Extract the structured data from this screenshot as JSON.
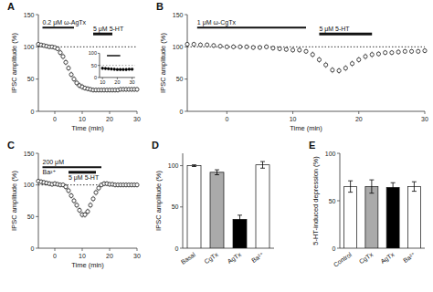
{
  "chart_data": [
    {
      "type": "scatter",
      "title": "A",
      "xlabel": "Time (min)",
      "ylabel": "IPSC amplitude (%)",
      "x": [
        -6,
        -5,
        -4,
        -3,
        -2,
        -1,
        0,
        1,
        2,
        3,
        4,
        5,
        6,
        7,
        8,
        9,
        10,
        11,
        12,
        13,
        14,
        15,
        16,
        17,
        18,
        19,
        20,
        21,
        22,
        23,
        24,
        25,
        26,
        27,
        28,
        29,
        30
      ],
      "values": [
        104,
        103,
        102,
        101,
        100,
        100,
        99,
        97,
        91,
        85,
        76,
        67,
        57,
        50,
        44,
        40,
        38,
        36,
        35,
        34,
        33,
        33,
        33,
        33,
        33,
        33,
        33,
        33,
        33,
        33,
        34,
        34,
        34,
        34,
        34,
        34,
        34
      ],
      "errors": [
        3,
        3,
        3,
        3,
        3,
        3,
        3,
        4,
        5,
        5,
        5,
        5,
        5,
        5,
        5,
        5,
        5,
        4,
        4,
        4,
        4,
        4,
        4,
        4,
        4,
        4,
        4,
        4,
        4,
        4,
        4,
        4,
        4,
        4,
        4,
        4,
        4
      ],
      "color": "black",
      "marker": "open-circle",
      "xlim": [
        -6,
        30
      ],
      "ylim": [
        0,
        150
      ],
      "xticks": [
        0,
        10,
        20,
        30
      ],
      "yticks": [
        0,
        50,
        100,
        150
      ],
      "reference_line": 100,
      "annotations": [
        {
          "text": "0.2 μM ω-AgTx",
          "x": [
            -4.5,
            7
          ],
          "y": 130
        },
        {
          "text": "5 μM 5-HT",
          "x": [
            14,
            21
          ],
          "y": 120
        }
      ],
      "inset": {
        "type": "scatter",
        "x": [
          10,
          12,
          14,
          16,
          18,
          20,
          22,
          24,
          26,
          28,
          30
        ],
        "values": [
          38,
          37,
          36,
          35,
          34,
          33,
          33,
          33,
          33,
          34,
          34
        ],
        "errors": [
          3.5,
          3.5,
          3.5,
          3.5,
          3.5,
          3.5,
          3.5,
          3.5,
          3.5,
          3.5,
          3.5
        ],
        "color": "black",
        "marker": "circle",
        "xlim": [
          8,
          32
        ],
        "ylim": [
          0,
          100
        ],
        "xticks": [
          10,
          20,
          30
        ],
        "yticks": [
          0,
          50,
          100
        ],
        "reference_line": 50,
        "annotations": [
          {
            "x": [
              13,
              22
            ],
            "y": 90
          }
        ]
      }
    },
    {
      "type": "scatter",
      "title": "B",
      "xlabel": "Time (min)",
      "ylabel": "IPSC amplitude (%)",
      "x": [
        -6,
        -5,
        -4,
        -3,
        -2,
        -1,
        0,
        1,
        2,
        3,
        4,
        5,
        6,
        7,
        8,
        9,
        10,
        11,
        12,
        13,
        14,
        15,
        16,
        17,
        18,
        19,
        20,
        21,
        22,
        23,
        24,
        25,
        26,
        27,
        28,
        29,
        30
      ],
      "values": [
        104,
        104,
        103,
        103,
        102,
        101,
        100,
        100,
        100,
        100,
        99,
        99,
        100,
        98,
        97,
        96,
        95,
        95,
        93,
        88,
        80,
        72,
        64,
        63,
        67,
        74,
        80,
        85,
        88,
        89,
        91,
        91,
        92,
        93,
        93,
        93,
        94
      ],
      "errors": [
        4,
        4,
        4,
        4,
        4,
        4,
        4,
        4,
        4,
        4,
        4,
        4,
        4,
        4,
        4,
        4,
        4,
        4,
        4,
        5,
        5,
        5,
        5,
        5,
        5,
        5,
        5,
        5,
        5,
        4,
        4,
        4,
        4,
        4,
        4,
        4,
        4
      ],
      "color": "black",
      "marker": "open-circle",
      "xlim": [
        -6,
        30
      ],
      "ylim": [
        0,
        150
      ],
      "xticks": [
        0,
        10,
        20,
        30
      ],
      "yticks": [
        0,
        50,
        100,
        150
      ],
      "reference_line": 100,
      "annotations": [
        {
          "text": "1 μM ω-CgTx",
          "x": [
            -4.5,
            12
          ],
          "y": 130
        },
        {
          "text": "5 μM 5-HT",
          "x": [
            14,
            22
          ],
          "y": 120
        }
      ]
    },
    {
      "type": "scatter",
      "title": "C",
      "xlabel": "Time (min)",
      "ylabel": "IPSC amplitude (%)",
      "x": [
        -6,
        -5,
        -4,
        -3,
        -2,
        -1,
        0,
        1,
        2,
        3,
        4,
        5,
        6,
        7,
        8,
        9,
        10,
        11,
        12,
        13,
        14,
        15,
        16,
        17,
        18,
        19,
        20,
        21,
        22,
        23,
        24,
        25,
        26,
        27,
        28,
        29,
        30
      ],
      "values": [
        106,
        105,
        104,
        103,
        102,
        101,
        102,
        101,
        100,
        100,
        97,
        91,
        83,
        75,
        68,
        60,
        53,
        53,
        58,
        68,
        78,
        88,
        95,
        100,
        102,
        102,
        101,
        101,
        100,
        100,
        100,
        100,
        100,
        100,
        100,
        100,
        100
      ],
      "errors": [
        4,
        4,
        4,
        4,
        4,
        4,
        4,
        4,
        4,
        4,
        5,
        5,
        5,
        5,
        5,
        5,
        5,
        5,
        5,
        5,
        5,
        5,
        5,
        4,
        4,
        4,
        4,
        4,
        4,
        4,
        4,
        4,
        4,
        4,
        4,
        4,
        4
      ],
      "color": "black",
      "marker": "open-circle",
      "xlim": [
        -6,
        30
      ],
      "ylim": [
        0,
        150
      ],
      "xticks": [
        0,
        10,
        20,
        30
      ],
      "yticks": [
        0,
        50,
        100,
        150
      ],
      "reference_line": 100,
      "annotations": [
        {
          "text": "200 μM",
          "text_below": "Ba²⁺",
          "x": [
            -4.5,
            17
          ],
          "y": 128
        },
        {
          "text": "5 μM 5-HT",
          "x": [
            5,
            15
          ],
          "y": 120
        }
      ]
    },
    {
      "type": "bar",
      "title": "D",
      "ylabel": "IPSC amplitude (%)",
      "categories": [
        "Basal",
        "CgTx",
        "AgTx",
        "Ba²⁺"
      ],
      "values": [
        100,
        92,
        35,
        101
      ],
      "errors": [
        1,
        3,
        5,
        4
      ],
      "colors": [
        "white",
        "#aaaaaa",
        "black",
        "white"
      ],
      "ylim": [
        0,
        115
      ],
      "yticks": [
        0,
        50,
        100
      ]
    },
    {
      "type": "bar",
      "title": "E",
      "ylabel": "5-HT-induced depression (%)",
      "categories": [
        "Control",
        "CgTx",
        "AgTx",
        "Ba²⁺"
      ],
      "values": [
        65,
        65,
        64,
        65
      ],
      "errors": [
        6,
        7,
        5,
        5
      ],
      "colors": [
        "white",
        "#aaaaaa",
        "black",
        "white"
      ],
      "ylim": [
        0,
        100
      ],
      "yticks": [
        0,
        50,
        100
      ]
    }
  ]
}
